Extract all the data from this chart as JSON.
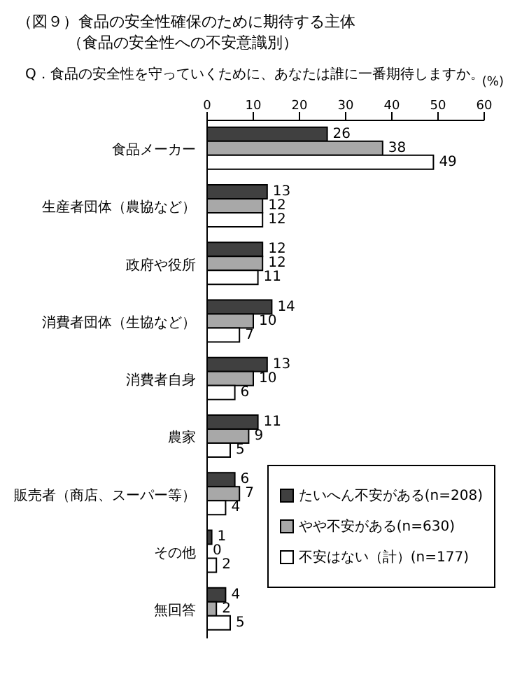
{
  "chart_data": {
    "type": "bar",
    "orientation": "horizontal",
    "title": "（図９）食品の安全性確保のために期待する主体",
    "subtitle": "（食品の安全性への不安意識別）",
    "annotations": [
      "Q．食品の安全性を守っていくために、あなたは誰に一番期待しますか。"
    ],
    "xlabel": "(%)",
    "categories": [
      "食品メーカー",
      "生産者団体（農協など）",
      "政府や役所",
      "消費者団体（生協など）",
      "消費者自身",
      "農家",
      "販売者（商店、スーパー等）",
      "その他",
      "無回答"
    ],
    "series": [
      {
        "name": "たいへん不安がある(n=208)",
        "color": "#404040",
        "values": [
          26,
          13,
          12,
          14,
          13,
          11,
          6,
          1,
          4
        ]
      },
      {
        "name": "やや不安がある(n=630)",
        "color": "#a8a8a8",
        "values": [
          38,
          12,
          12,
          10,
          10,
          9,
          7,
          0,
          2
        ]
      },
      {
        "name": "不安はない（計）(n=177)",
        "color": "#ffffff",
        "values": [
          49,
          12,
          11,
          7,
          6,
          5,
          4,
          2,
          5
        ]
      }
    ],
    "xlim": [
      0,
      60
    ],
    "xticks": [
      0,
      10,
      20,
      30,
      40,
      50,
      60
    ],
    "data_labels": true,
    "legend": "bottom right",
    "grid": false
  }
}
